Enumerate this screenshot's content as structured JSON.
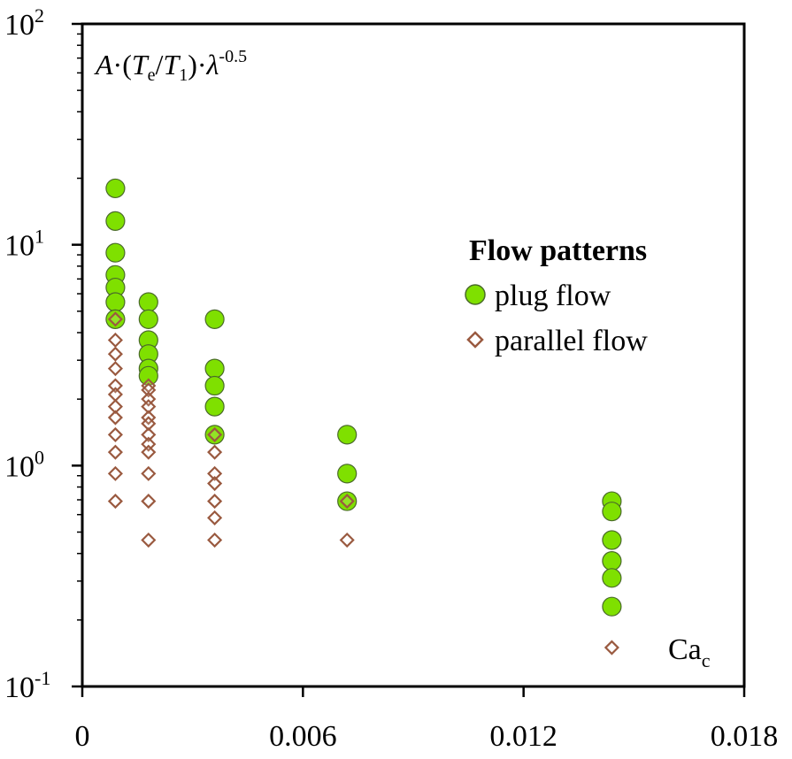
{
  "chart_data": {
    "type": "scatter",
    "title": "",
    "ylabel_parts": [
      "A",
      "·(",
      "T",
      "e",
      "/",
      "T",
      "1",
      ")·",
      "λ",
      "-0.5"
    ],
    "xlabel_main": "Ca",
    "xlabel_sub": "c",
    "xscale": "linear",
    "yscale": "log",
    "xlim": [
      0,
      0.018
    ],
    "ylim": [
      0.1,
      100
    ],
    "x_ticks": [
      "0",
      "0.006",
      "0.012",
      "0.018"
    ],
    "y_ticks": [
      {
        "base": "10",
        "exp": "-1",
        "value": 0.1
      },
      {
        "base": "10",
        "exp": "0",
        "value": 1
      },
      {
        "base": "10",
        "exp": "1",
        "value": 10
      },
      {
        "base": "10",
        "exp": "2",
        "value": 100
      }
    ],
    "grid": false,
    "legend": {
      "title": "Flow patterns",
      "placement": "right-middle",
      "entries": [
        "plug flow",
        "parallel flow"
      ]
    },
    "series": [
      {
        "name": "plug flow",
        "marker": "circle",
        "color": "#7fe000",
        "edge": "#4a6a2a",
        "points": [
          [
            0.0009,
            18.0
          ],
          [
            0.0009,
            12.8
          ],
          [
            0.0009,
            9.2
          ],
          [
            0.0009,
            7.3
          ],
          [
            0.0009,
            6.4
          ],
          [
            0.0009,
            5.5
          ],
          [
            0.0009,
            4.6
          ],
          [
            0.0018,
            5.5
          ],
          [
            0.0018,
            4.6
          ],
          [
            0.0018,
            3.7
          ],
          [
            0.0018,
            3.2
          ],
          [
            0.0018,
            2.75
          ],
          [
            0.0018,
            2.55
          ],
          [
            0.0036,
            4.6
          ],
          [
            0.0036,
            2.75
          ],
          [
            0.0036,
            2.3
          ],
          [
            0.0036,
            1.85
          ],
          [
            0.0036,
            1.38
          ],
          [
            0.0072,
            1.38
          ],
          [
            0.0072,
            0.92
          ],
          [
            0.0072,
            0.69
          ],
          [
            0.0144,
            0.69
          ],
          [
            0.0144,
            0.62
          ],
          [
            0.0144,
            0.46
          ],
          [
            0.0144,
            0.37
          ],
          [
            0.0144,
            0.31
          ],
          [
            0.0144,
            0.23
          ]
        ]
      },
      {
        "name": "parallel flow",
        "marker": "diamond",
        "color": "#ffffff",
        "edge": "#9a5a40",
        "points": [
          [
            0.0009,
            4.6
          ],
          [
            0.0009,
            3.7
          ],
          [
            0.0009,
            3.2
          ],
          [
            0.0009,
            2.75
          ],
          [
            0.0009,
            2.3
          ],
          [
            0.0009,
            2.1
          ],
          [
            0.0009,
            1.85
          ],
          [
            0.0009,
            1.65
          ],
          [
            0.0009,
            1.38
          ],
          [
            0.0009,
            1.15
          ],
          [
            0.0009,
            0.92
          ],
          [
            0.0009,
            0.69
          ],
          [
            0.0018,
            2.3
          ],
          [
            0.0018,
            2.2
          ],
          [
            0.0018,
            2.0
          ],
          [
            0.0018,
            1.85
          ],
          [
            0.0018,
            1.65
          ],
          [
            0.0018,
            1.55
          ],
          [
            0.0018,
            1.38
          ],
          [
            0.0018,
            1.25
          ],
          [
            0.0018,
            1.15
          ],
          [
            0.0018,
            0.92
          ],
          [
            0.0018,
            0.69
          ],
          [
            0.0018,
            0.46
          ],
          [
            0.0036,
            1.38
          ],
          [
            0.0036,
            1.15
          ],
          [
            0.0036,
            0.92
          ],
          [
            0.0036,
            0.83
          ],
          [
            0.0036,
            0.69
          ],
          [
            0.0036,
            0.58
          ],
          [
            0.0036,
            0.46
          ],
          [
            0.0072,
            0.69
          ],
          [
            0.0072,
            0.46
          ],
          [
            0.0144,
            0.15
          ]
        ]
      }
    ]
  }
}
